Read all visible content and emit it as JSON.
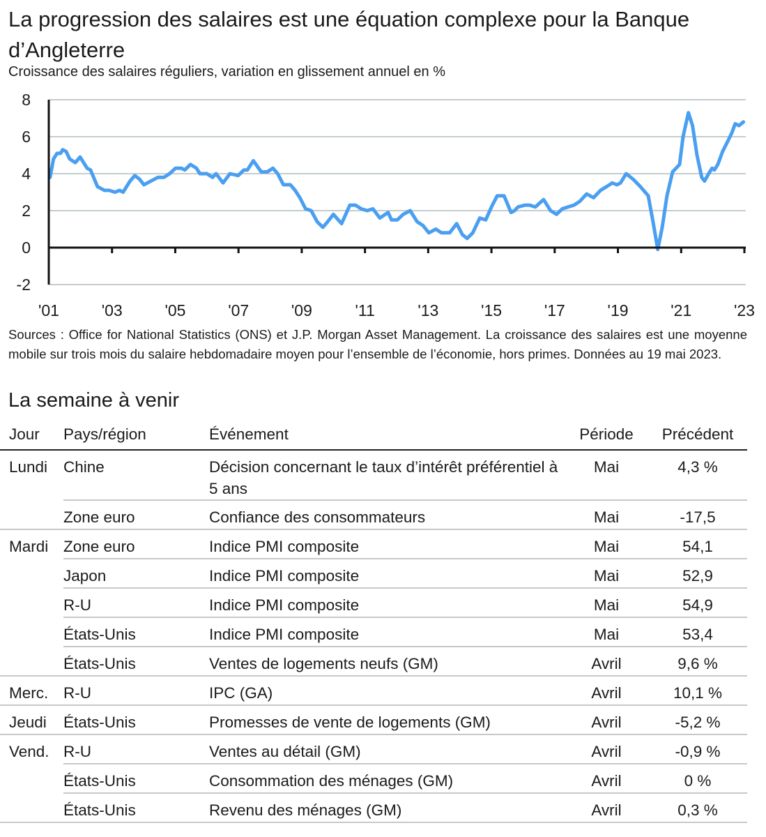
{
  "title": "La progression des salaires est une équation complexe pour la Banque d’Angleterre",
  "subtitle": "Croissance des salaires réguliers, variation en glissement annuel en %",
  "chart_data": {
    "type": "line",
    "title": "La progression des salaires est une équation complexe pour la Banque d’Angleterre",
    "ylabel": "Croissance des salaires réguliers, variation en glissement annuel en %",
    "xlabel": "",
    "ylim": [
      -2,
      8
    ],
    "xlim": [
      2001,
      2023
    ],
    "yticks": [
      8,
      6,
      4,
      2,
      0,
      -2
    ],
    "ytick_labels": [
      "8",
      "6",
      "4",
      "2",
      "0",
      "-2"
    ],
    "xticks": [
      2001,
      2003,
      2005,
      2007,
      2009,
      2011,
      2013,
      2015,
      2017,
      2019,
      2021,
      2023
    ],
    "xtick_labels": [
      "'01",
      "'03",
      "'05",
      "'07",
      "'09",
      "'11",
      "'13",
      "'15",
      "'17",
      "'19",
      "'21",
      "'23"
    ],
    "grid": true,
    "color": "#4a9ff0",
    "series": [
      {
        "name": "Croissance des salaires réguliers",
        "points": [
          [
            2001.04,
            3.8
          ],
          [
            2001.15,
            4.8
          ],
          [
            2001.26,
            5.1
          ],
          [
            2001.37,
            5.1
          ],
          [
            2001.44,
            5.3
          ],
          [
            2001.55,
            5.2
          ],
          [
            2001.66,
            4.8
          ],
          [
            2001.84,
            4.6
          ],
          [
            2001.99,
            4.9
          ],
          [
            2002.1,
            4.6
          ],
          [
            2002.21,
            4.3
          ],
          [
            2002.32,
            4.2
          ],
          [
            2002.54,
            3.3
          ],
          [
            2002.76,
            3.1
          ],
          [
            2002.91,
            3.1
          ],
          [
            2003.09,
            3.0
          ],
          [
            2003.24,
            3.1
          ],
          [
            2003.35,
            3.0
          ],
          [
            2003.57,
            3.6
          ],
          [
            2003.72,
            3.9
          ],
          [
            2003.87,
            3.7
          ],
          [
            2004.01,
            3.4
          ],
          [
            2004.23,
            3.6
          ],
          [
            2004.45,
            3.8
          ],
          [
            2004.64,
            3.8
          ],
          [
            2004.82,
            4.0
          ],
          [
            2005.01,
            4.3
          ],
          [
            2005.19,
            4.3
          ],
          [
            2005.3,
            4.2
          ],
          [
            2005.48,
            4.5
          ],
          [
            2005.67,
            4.3
          ],
          [
            2005.78,
            4.0
          ],
          [
            2006.0,
            4.0
          ],
          [
            2006.18,
            3.8
          ],
          [
            2006.29,
            4.0
          ],
          [
            2006.51,
            3.5
          ],
          [
            2006.73,
            4.0
          ],
          [
            2006.99,
            3.9
          ],
          [
            2007.17,
            4.2
          ],
          [
            2007.28,
            4.2
          ],
          [
            2007.47,
            4.7
          ],
          [
            2007.72,
            4.1
          ],
          [
            2007.91,
            4.1
          ],
          [
            2008.09,
            4.3
          ],
          [
            2008.24,
            4.0
          ],
          [
            2008.42,
            3.4
          ],
          [
            2008.64,
            3.4
          ],
          [
            2008.79,
            3.1
          ],
          [
            2008.94,
            2.7
          ],
          [
            2009.12,
            2.1
          ],
          [
            2009.3,
            2.0
          ],
          [
            2009.49,
            1.4
          ],
          [
            2009.67,
            1.1
          ],
          [
            2009.82,
            1.4
          ],
          [
            2010.0,
            1.8
          ],
          [
            2010.26,
            1.3
          ],
          [
            2010.52,
            2.3
          ],
          [
            2010.7,
            2.3
          ],
          [
            2010.88,
            2.1
          ],
          [
            2011.07,
            2.0
          ],
          [
            2011.25,
            2.1
          ],
          [
            2011.47,
            1.6
          ],
          [
            2011.73,
            1.9
          ],
          [
            2011.84,
            1.5
          ],
          [
            2012.02,
            1.5
          ],
          [
            2012.21,
            1.8
          ],
          [
            2012.43,
            2.0
          ],
          [
            2012.65,
            1.4
          ],
          [
            2012.83,
            1.2
          ],
          [
            2013.02,
            0.8
          ],
          [
            2013.24,
            1.0
          ],
          [
            2013.42,
            0.8
          ],
          [
            2013.68,
            0.8
          ],
          [
            2013.9,
            1.3
          ],
          [
            2014.08,
            0.7
          ],
          [
            2014.23,
            0.5
          ],
          [
            2014.41,
            0.8
          ],
          [
            2014.63,
            1.6
          ],
          [
            2014.82,
            1.5
          ],
          [
            2015.0,
            2.2
          ],
          [
            2015.18,
            2.8
          ],
          [
            2015.4,
            2.8
          ],
          [
            2015.62,
            1.9
          ],
          [
            2015.73,
            2.0
          ],
          [
            2015.84,
            2.2
          ],
          [
            2016.06,
            2.3
          ],
          [
            2016.21,
            2.3
          ],
          [
            2016.39,
            2.2
          ],
          [
            2016.65,
            2.6
          ],
          [
            2016.87,
            2.0
          ],
          [
            2017.06,
            1.8
          ],
          [
            2017.24,
            2.1
          ],
          [
            2017.42,
            2.2
          ],
          [
            2017.61,
            2.3
          ],
          [
            2017.79,
            2.5
          ],
          [
            2018.01,
            2.9
          ],
          [
            2018.23,
            2.7
          ],
          [
            2018.45,
            3.1
          ],
          [
            2018.64,
            3.3
          ],
          [
            2018.82,
            3.5
          ],
          [
            2018.97,
            3.4
          ],
          [
            2019.08,
            3.5
          ],
          [
            2019.26,
            4.0
          ],
          [
            2019.48,
            3.7
          ],
          [
            2019.71,
            3.3
          ],
          [
            2019.96,
            2.8
          ],
          [
            2020.11,
            1.4
          ],
          [
            2020.26,
            -0.1
          ],
          [
            2020.4,
            1.1
          ],
          [
            2020.55,
            2.8
          ],
          [
            2020.73,
            4.1
          ],
          [
            2020.95,
            4.5
          ],
          [
            2021.06,
            6.0
          ],
          [
            2021.23,
            7.3
          ],
          [
            2021.36,
            6.6
          ],
          [
            2021.5,
            5.0
          ],
          [
            2021.65,
            3.8
          ],
          [
            2021.74,
            3.6
          ],
          [
            2021.87,
            4.0
          ],
          [
            2021.98,
            4.3
          ],
          [
            2022.05,
            4.2
          ],
          [
            2022.16,
            4.5
          ],
          [
            2022.31,
            5.2
          ],
          [
            2022.46,
            5.7
          ],
          [
            2022.6,
            6.2
          ],
          [
            2022.71,
            6.7
          ],
          [
            2022.83,
            6.6
          ],
          [
            2022.97,
            6.8
          ]
        ]
      }
    ]
  },
  "sources": "Sources : Office for National Statistics (ONS) et J.P. Morgan Asset Management. La croissance des salaires est une moyenne mobile sur trois mois du salaire hebdomadaire moyen pour l’ensemble de l’économie, hors primes. Données au 19 mai 2023.",
  "week_ahead": {
    "title": "La semaine à venir",
    "headers": [
      "Jour",
      "Pays/région",
      "Événement",
      "Période",
      "Précédent"
    ],
    "rows": [
      [
        "Lundi",
        "Chine",
        "Décision concernant le taux d’intérêt préférentiel à 5 ans",
        "Mai",
        "4,3 %"
      ],
      [
        "",
        "Zone euro",
        "Confiance des consommateurs",
        "Mai",
        "-17,5"
      ],
      [
        "Mardi",
        "Zone euro",
        "Indice PMI composite",
        "Mai",
        "54,1"
      ],
      [
        "",
        "Japon",
        "Indice PMI composite",
        "Mai",
        "52,9"
      ],
      [
        "",
        "R-U",
        "Indice PMI composite",
        "Mai",
        "54,9"
      ],
      [
        "",
        "États-Unis",
        "Indice PMI composite",
        "Mai",
        "53,4"
      ],
      [
        "",
        "États-Unis",
        "Ventes de logements neufs (GM)",
        "Avril",
        "9,6 %"
      ],
      [
        "Merc.",
        "R-U",
        "IPC (GA)",
        "Avril",
        "10,1 %"
      ],
      [
        "Jeudi",
        "États-Unis",
        "Promesses de vente de logements (GM)",
        "Avril",
        "-5,2 %"
      ],
      [
        "Vend.",
        "R-U",
        "Ventes au détail (GM)",
        "Avril",
        "-0,9 %"
      ],
      [
        "",
        "États-Unis",
        "Consommation des ménages (GM)",
        "Avril",
        "0 %"
      ],
      [
        "",
        "États-Unis",
        "Revenu des ménages (GM)",
        "Avril",
        "0,3 %"
      ]
    ]
  }
}
